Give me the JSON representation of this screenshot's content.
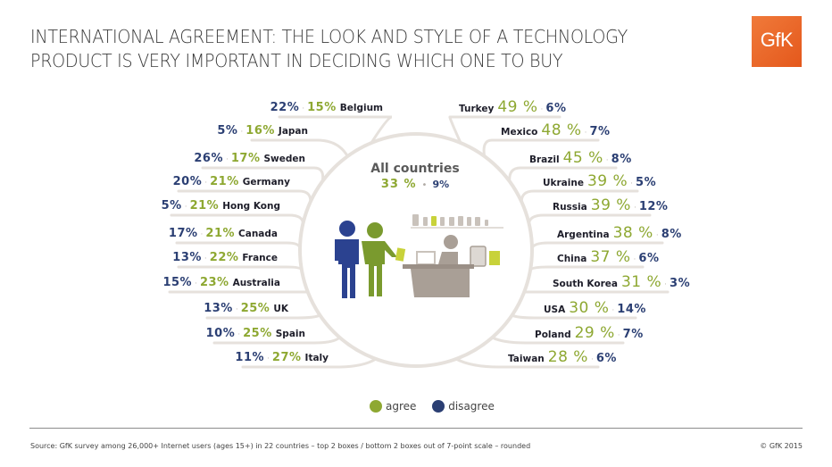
{
  "title": {
    "line1": "INTERNATIONAL AGREEMENT: THE LOOK AND STYLE OF A TECHNOLOGY",
    "line2": "PRODUCT IS VERY IMPORTANT IN DECIDING WHICH ONE TO BUY"
  },
  "logo": {
    "text": "GfK",
    "color": "#e96a2c"
  },
  "colors": {
    "agree": "#8ea832",
    "disagree": "#2b3f73",
    "branch": "#e6e1dc"
  },
  "all_countries": {
    "label": "All countries",
    "agree": "33 %",
    "disagree": "9%",
    "separator": "•"
  },
  "legend": {
    "agree": "agree",
    "disagree": "disagree"
  },
  "footer": {
    "source": "Source: GfK survey among 26,000+ Internet users (ages 15+) in 22 countries – top 2 boxes / bottom 2 boxes out of 7-point scale – rounded",
    "copyright": "© GfK 2015"
  },
  "chart_data": {
    "type": "table",
    "title": "INTERNATIONAL AGREEMENT: THE LOOK AND STYLE OF A TECHNOLOGY PRODUCT IS VERY IMPORTANT IN DECIDING WHICH ONE TO BUY",
    "series_names": [
      "agree",
      "disagree"
    ],
    "overall": {
      "name": "All countries",
      "agree": 33,
      "disagree": 9
    },
    "left": [
      {
        "country": "Belgium",
        "disagree": 22,
        "agree": 15,
        "disagree_label": "22%",
        "agree_label": "15%"
      },
      {
        "country": "Japan",
        "disagree": 5,
        "agree": 16,
        "disagree_label": "5%",
        "agree_label": "16%"
      },
      {
        "country": "Sweden",
        "disagree": 26,
        "agree": 17,
        "disagree_label": "26%",
        "agree_label": "17%"
      },
      {
        "country": "Germany",
        "disagree": 20,
        "agree": 21,
        "disagree_label": "20%",
        "agree_label": "21%"
      },
      {
        "country": "Hong Kong",
        "disagree": 5,
        "agree": 21,
        "disagree_label": "5%",
        "agree_label": "21%"
      },
      {
        "country": "Canada",
        "disagree": 17,
        "agree": 21,
        "disagree_label": "17%",
        "agree_label": "21%"
      },
      {
        "country": "France",
        "disagree": 13,
        "agree": 22,
        "disagree_label": "13%",
        "agree_label": "22%"
      },
      {
        "country": "Australia",
        "disagree": 15,
        "agree": 23,
        "disagree_label": "15%",
        "agree_label": "23%"
      },
      {
        "country": "UK",
        "disagree": 13,
        "agree": 25,
        "disagree_label": "13%",
        "agree_label": "25%"
      },
      {
        "country": "Spain",
        "disagree": 10,
        "agree": 25,
        "disagree_label": "10%",
        "agree_label": "25%"
      },
      {
        "country": "Italy",
        "disagree": 11,
        "agree": 27,
        "disagree_label": "11%",
        "agree_label": "27%"
      }
    ],
    "right": [
      {
        "country": "Turkey",
        "agree": 49,
        "disagree": 6,
        "agree_label": "49 %",
        "disagree_label": "6%"
      },
      {
        "country": "Mexico",
        "agree": 48,
        "disagree": 7,
        "agree_label": "48 %",
        "disagree_label": "7%"
      },
      {
        "country": "Brazil",
        "agree": 45,
        "disagree": 8,
        "agree_label": "45 %",
        "disagree_label": "8%"
      },
      {
        "country": "Ukraine",
        "agree": 39,
        "disagree": 5,
        "agree_label": "39 %",
        "disagree_label": "5%"
      },
      {
        "country": "Russia",
        "agree": 39,
        "disagree": 12,
        "agree_label": "39 %",
        "disagree_label": "12%"
      },
      {
        "country": "Argentina",
        "agree": 38,
        "disagree": 8,
        "agree_label": "38 %",
        "disagree_label": "8%"
      },
      {
        "country": "China",
        "agree": 37,
        "disagree": 6,
        "agree_label": "37 %",
        "disagree_label": "6%"
      },
      {
        "country": "South Korea",
        "agree": 31,
        "disagree": 3,
        "agree_label": "31 %",
        "disagree_label": "3%"
      },
      {
        "country": "USA",
        "agree": 30,
        "disagree": 14,
        "agree_label": "30 %",
        "disagree_label": "14%"
      },
      {
        "country": "Poland",
        "agree": 29,
        "disagree": 7,
        "agree_label": "29 %",
        "disagree_label": "7%"
      },
      {
        "country": "Taiwan",
        "agree": 28,
        "disagree": 6,
        "agree_label": "28 %",
        "disagree_label": "6%"
      }
    ]
  }
}
